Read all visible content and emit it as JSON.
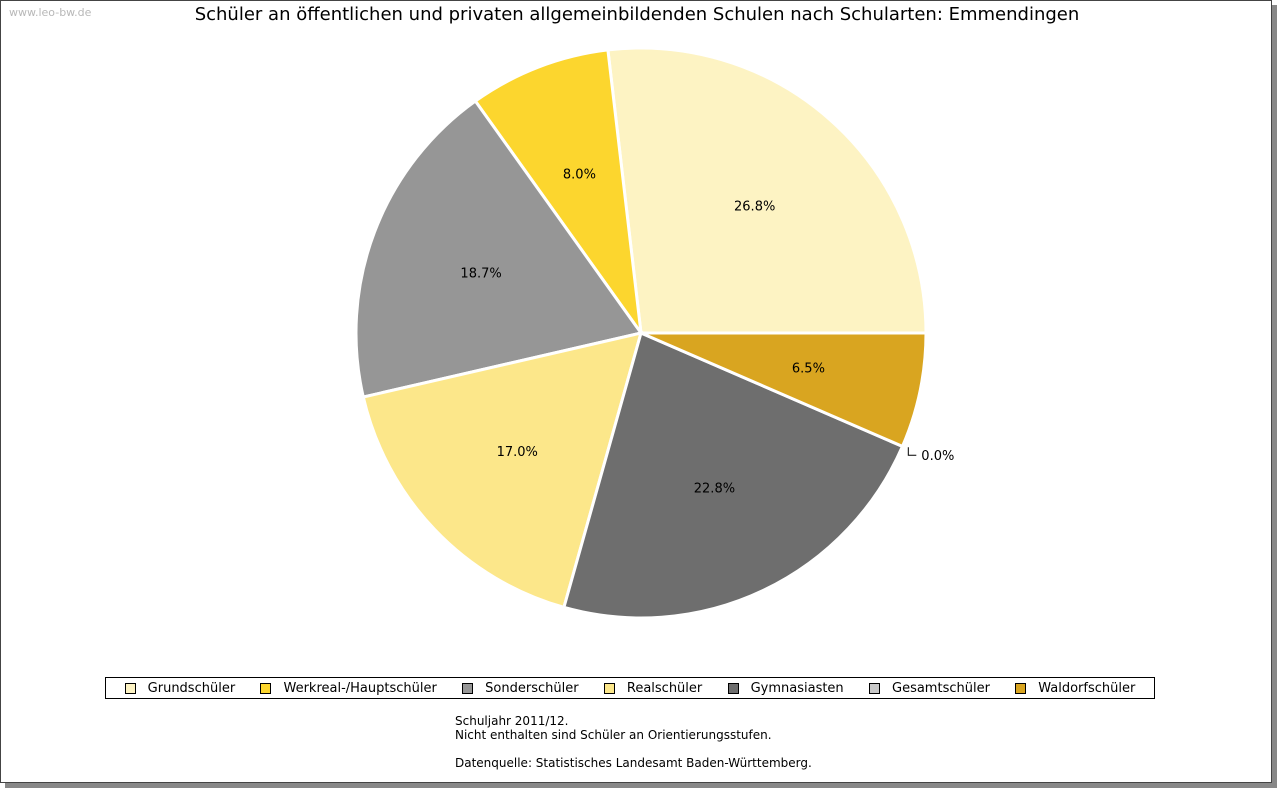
{
  "watermark": "www.leo-bw.de",
  "chart_data": {
    "type": "pie",
    "title": "Schüler an öffentlichen und privaten allgemeinbildenden Schulen nach Schularten: Emmendingen",
    "start_angle_deg": 0,
    "direction": "counterclockwise",
    "slices": [
      {
        "name": "Grundschüler",
        "value": 26.8,
        "label": "26.8%",
        "color": "#FDF3C3"
      },
      {
        "name": "Werkreal-/Hauptschüler",
        "value": 8.0,
        "label": "8.0%",
        "color": "#FCD62E"
      },
      {
        "name": "Sonderschüler",
        "value": 18.7,
        "label": "18.7%",
        "color": "#969696"
      },
      {
        "name": "Realschüler",
        "value": 17.0,
        "label": "17.0%",
        "color": "#FCE78A"
      },
      {
        "name": "Gymnasiasten",
        "value": 22.8,
        "label": "22.8%",
        "color": "#6E6E6E"
      },
      {
        "name": "Gesamtschüler",
        "value": 0.0,
        "label": "0.0%",
        "color": "#C8C8C8"
      },
      {
        "name": "Waldorfschüler",
        "value": 6.5,
        "label": "6.5%",
        "color": "#D9A520"
      }
    ],
    "legend_position": "bottom"
  },
  "notes": {
    "line1": "Schuljahr 2011/12.",
    "line2": "Nicht enthalten sind Schüler an Orientierungsstufen.",
    "source": "Datenquelle: Statistisches Landesamt Baden-Württemberg."
  }
}
